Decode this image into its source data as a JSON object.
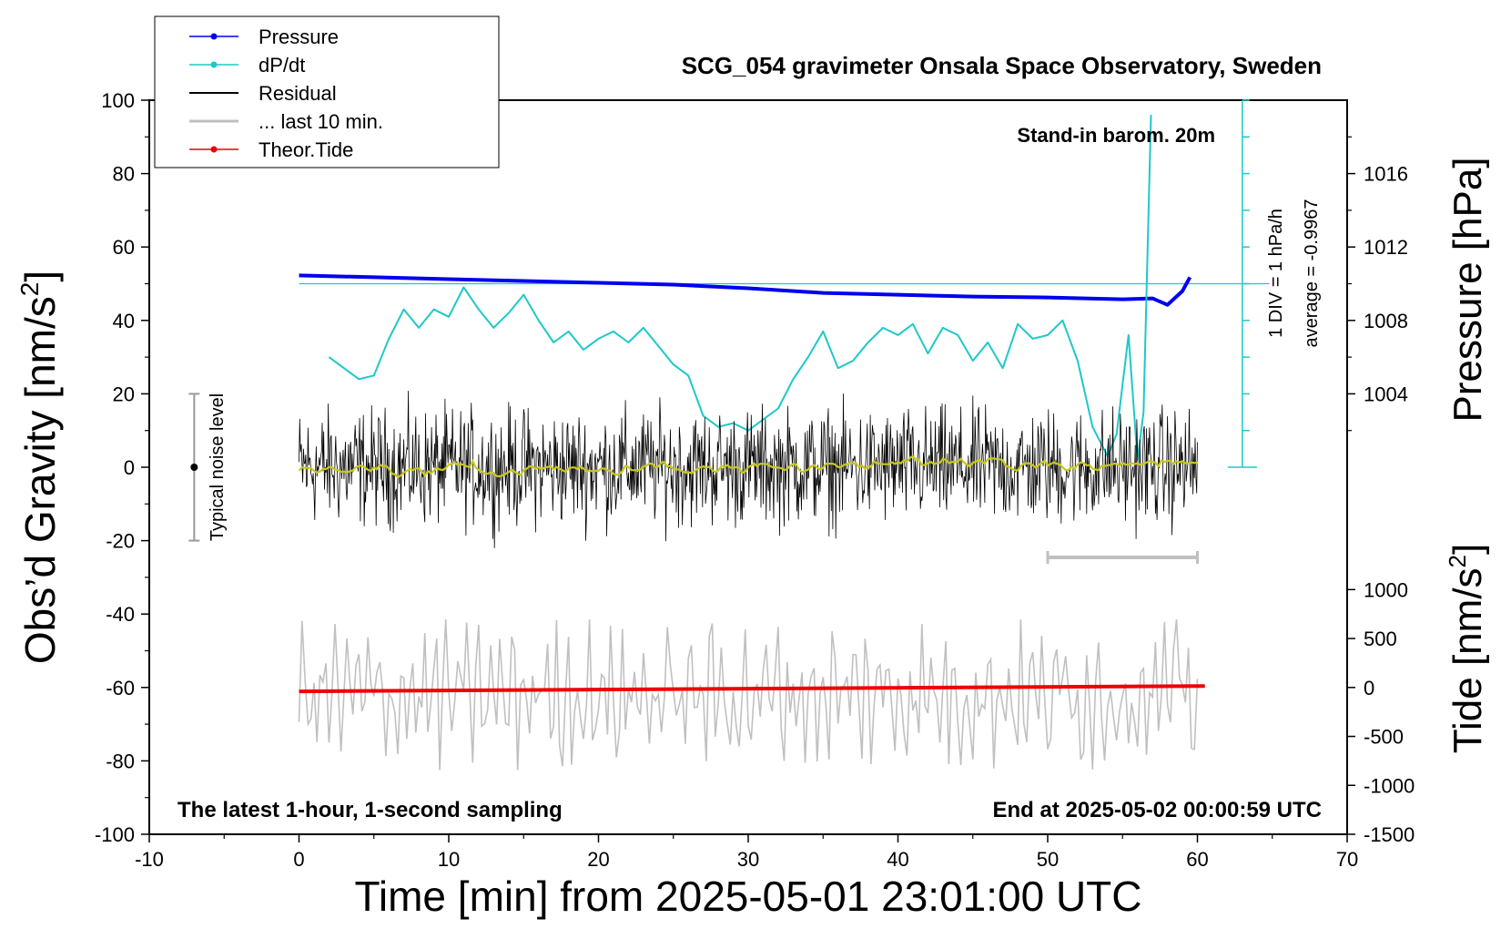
{
  "chart_data": {
    "type": "line",
    "title": "SCG_054 gravimeter Onsala Space Observatory, Sweden",
    "xlabel": "Time [min] from 2025-05-01 23:01:00 UTC",
    "ylabel_left": "Obs’d Gravity [nm/s",
    "ylabel_left_sup": "2",
    "ylabel_left_close": "]",
    "ylabel_right_top": "Pressure [hPa]",
    "ylabel_right_bottom": "Tide [nm/s",
    "ylabel_right_bottom_sup": "2",
    "ylabel_right_bottom_close": "]",
    "xlim": [
      -10,
      70
    ],
    "ylim": [
      -100,
      100
    ],
    "pressure_lim": [
      1000,
      1020
    ],
    "tide_lim": [
      -1500,
      1500
    ],
    "x_ticks": [
      "-10",
      "0",
      "10",
      "20",
      "30",
      "40",
      "50",
      "60",
      "70"
    ],
    "y_ticks": [
      "100",
      "80",
      "60",
      "40",
      "20",
      "0",
      "-20",
      "-40",
      "-60",
      "-80",
      "-100"
    ],
    "pressure_ticks": [
      "1016",
      "1012",
      "1008",
      "1004"
    ],
    "tide_ticks": [
      "1000",
      "500",
      "0",
      "-500",
      "-1000",
      "-1500"
    ],
    "annotations": {
      "barometer": "Stand-in barom. 20m",
      "div": "1 DIV = 1 hPa/h",
      "average": "average = -0.9967",
      "noise": "Typical noise level",
      "latest": "The latest 1-hour, 1-second sampling",
      "end": "End at 2025-05-02 00:00:59 UTC"
    },
    "legend": [
      "Pressure",
      "dP/dt",
      "Residual",
      "... last 10 min.",
      "Theor.Tide"
    ],
    "legend_position": "top-left",
    "colors": {
      "pressure": "#0000ee",
      "dpdt": "#1ec8c8",
      "residual": "#000000",
      "last10": "#c0c0c0",
      "tide": "#ee0000",
      "smooth": "#c8c81e"
    },
    "series": [
      {
        "name": "Pressure",
        "unit": "hPa",
        "x": [
          0,
          5,
          10,
          15,
          20,
          25,
          30,
          35,
          40,
          45,
          50,
          55,
          57,
          58,
          59,
          59.5
        ],
        "y": [
          1010.45,
          1010.35,
          1010.25,
          1010.15,
          1010.05,
          1009.95,
          1009.75,
          1009.5,
          1009.4,
          1009.3,
          1009.25,
          1009.15,
          1009.2,
          1008.85,
          1009.6,
          1010.35
        ]
      },
      {
        "name": "dP/dt",
        "unit": "hPa/h (vertical scale: 1 DIV = 1 hPa/h)",
        "x": [
          2,
          3,
          4,
          5,
          6,
          7,
          8,
          9,
          10,
          11,
          12,
          13,
          14,
          15,
          16,
          17,
          18,
          19,
          20,
          21,
          22,
          23,
          24,
          25,
          26,
          27,
          28,
          29,
          30,
          31,
          32,
          33,
          34,
          35,
          36,
          37,
          38,
          39,
          40,
          41,
          42,
          43,
          44,
          45,
          46,
          47,
          48,
          49,
          50,
          51,
          52,
          53,
          54,
          54.6,
          55.4,
          56,
          56.4,
          56.9
        ],
        "y": [
          -2.0,
          -2.3,
          -2.6,
          -2.5,
          -1.5,
          -0.7,
          -1.2,
          -0.7,
          -0.9,
          -0.1,
          -0.7,
          -1.2,
          -0.8,
          -0.3,
          -1.0,
          -1.6,
          -1.3,
          -1.8,
          -1.5,
          -1.3,
          -1.6,
          -1.2,
          -1.7,
          -2.2,
          -2.5,
          -3.6,
          -3.9,
          -3.8,
          -4.0,
          -3.7,
          -3.4,
          -2.6,
          -2.0,
          -1.3,
          -2.3,
          -2.1,
          -1.6,
          -1.2,
          -1.4,
          -1.1,
          -1.9,
          -1.2,
          -1.4,
          -2.1,
          -1.6,
          -2.3,
          -1.1,
          -1.5,
          -1.4,
          -1.0,
          -2.1,
          -3.9,
          -4.7,
          -4.1,
          -1.4,
          -4.8,
          -3.5,
          4.6
        ]
      },
      {
        "name": "Residual",
        "unit": "nm/s2",
        "x_range": [
          0,
          60
        ],
        "envelope_y": [
          -26,
          23
        ],
        "mean_y": 0
      },
      {
        "name": "... last 10 min.",
        "unit": "nm/s2",
        "x_range": [
          50,
          60
        ],
        "y": 0
      },
      {
        "name": "Theor.Tide",
        "unit": "nm/s2",
        "x": [
          0,
          60.5
        ],
        "y": [
          -40,
          15
        ]
      },
      {
        "name": "noise (overlay, y-offset -60)",
        "unit": "nm/s2",
        "x_range": [
          0,
          60
        ],
        "envelope_y": [
          -85,
          -44
        ],
        "mean_y": -62
      }
    ],
    "noise_bar": {
      "x": -7,
      "y": 0,
      "low": -20,
      "high": 20
    },
    "pressure_ref": 1010
  }
}
